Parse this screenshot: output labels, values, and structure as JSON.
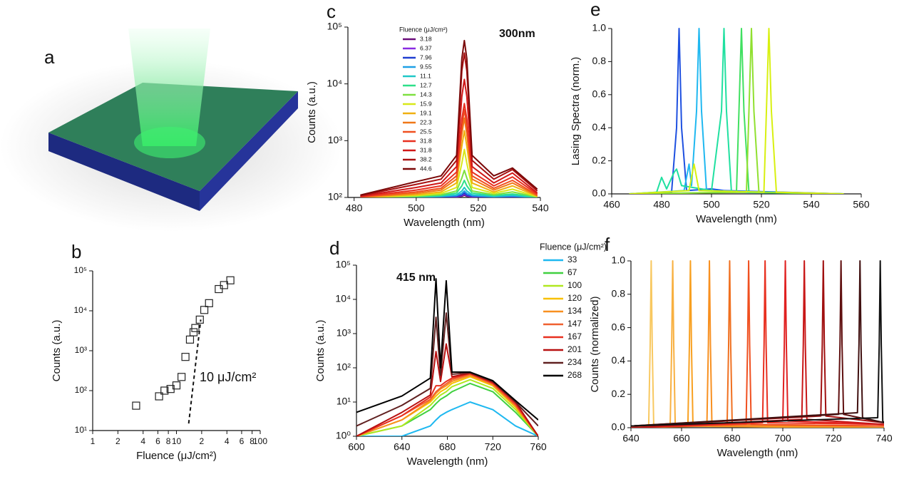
{
  "illustration": {
    "label": "a"
  },
  "chart_data": [
    {
      "type": "scatter",
      "panel_label": "b",
      "xlabel": "Fluence (μJ/cm²)",
      "ylabel": "Counts (a.u.)",
      "xlog": true,
      "ylog": true,
      "xlim": [
        1,
        100
      ],
      "ylim": [
        10,
        100000
      ],
      "xticks": [
        1,
        2,
        4,
        6,
        8,
        10,
        {
          "value": 20,
          "label": "2"
        },
        {
          "value": 40,
          "label": "4"
        },
        {
          "value": 60,
          "label": "6"
        },
        {
          "value": 80,
          "label": "8"
        },
        100
      ],
      "yticks": [
        {
          "value": 10,
          "label": "10¹"
        },
        {
          "value": 100,
          "label": "10²"
        },
        {
          "value": 1000,
          "label": "10³"
        },
        {
          "value": 10000,
          "label": "10⁴"
        },
        {
          "value": 100000,
          "label": "10⁵"
        }
      ],
      "annotation": "10 μJ/cm²",
      "series": [
        {
          "color": "#222222",
          "x": [
            3.3,
            6.2,
            7.2,
            8.5,
            10,
            11.5,
            12.8,
            14.5,
            16,
            16.8,
            19,
            21.5,
            24.5,
            32,
            37,
            44
          ],
          "values": [
            42,
            72,
            100,
            110,
            135,
            220,
            700,
            1900,
            2900,
            3700,
            6000,
            10500,
            15500,
            35000,
            44000,
            58000
          ]
        }
      ],
      "fit_line": {
        "x": [
          14,
          19.5
        ],
        "y": [
          15,
          6000
        ]
      }
    },
    {
      "type": "line",
      "panel_label": "c",
      "xlabel": "Wavelength (nm)",
      "ylabel": "Counts (a.u.)",
      "ylog": true,
      "xlim": [
        478,
        540
      ],
      "ylim": [
        100,
        100000
      ],
      "xticks": [
        480,
        500,
        520,
        540
      ],
      "yticks": [
        {
          "value": 100,
          "label": "10²"
        },
        {
          "value": 1000,
          "label": "10³"
        },
        {
          "value": 10000,
          "label": "10⁴"
        },
        {
          "value": 100000,
          "label": "10⁵"
        }
      ],
      "annotation": "300nm",
      "legend_title": "Fluence (μJ/cm²)",
      "x": [
        482,
        500,
        508,
        513,
        514.7,
        515.5,
        516.3,
        518,
        525,
        531,
        539
      ],
      "series": [
        {
          "name": "3.18",
          "color": "#6a0d7a",
          "values": [
            100,
            100,
            100,
            102,
            105,
            110,
            105,
            102,
            100,
            101,
            100
          ]
        },
        {
          "name": "6.37",
          "color": "#8a2be2",
          "values": [
            100,
            100,
            101,
            103,
            108,
            115,
            108,
            103,
            101,
            102,
            100
          ]
        },
        {
          "name": "7.96",
          "color": "#1f3fd0",
          "values": [
            100,
            100,
            102,
            105,
            110,
            120,
            110,
            105,
            102,
            104,
            100
          ]
        },
        {
          "name": "9.55",
          "color": "#1ea0e6",
          "values": [
            100,
            101,
            104,
            108,
            118,
            130,
            118,
            108,
            103,
            106,
            100
          ]
        },
        {
          "name": "11.1",
          "color": "#20c8c8",
          "values": [
            100,
            102,
            106,
            112,
            130,
            150,
            130,
            112,
            105,
            110,
            100
          ]
        },
        {
          "name": "12.7",
          "color": "#2ee08a",
          "values": [
            100,
            103,
            108,
            120,
            160,
            200,
            160,
            120,
            108,
            115,
            101
          ]
        },
        {
          "name": "14.3",
          "color": "#7ee040",
          "values": [
            100,
            105,
            112,
            130,
            220,
            300,
            220,
            130,
            112,
            125,
            102
          ]
        },
        {
          "name": "15.9",
          "color": "#d8e818",
          "values": [
            100,
            108,
            118,
            150,
            400,
            700,
            400,
            150,
            118,
            140,
            103
          ]
        },
        {
          "name": "19.1",
          "color": "#f0b010",
          "values": [
            100,
            112,
            125,
            180,
            800,
            1500,
            800,
            180,
            125,
            160,
            105
          ]
        },
        {
          "name": "22.3",
          "color": "#f07818",
          "values": [
            101,
            118,
            135,
            210,
            1300,
            2500,
            1300,
            210,
            135,
            180,
            107
          ]
        },
        {
          "name": "25.5",
          "color": "#f05020",
          "values": [
            102,
            125,
            145,
            240,
            1800,
            3500,
            1800,
            240,
            145,
            200,
            110
          ]
        },
        {
          "name": "31.8",
          "color": "#e83020",
          "values": [
            103,
            135,
            160,
            280,
            2400,
            4500,
            2400,
            280,
            160,
            230,
            115
          ]
        },
        {
          "name": "31.8",
          "color": "#d01818",
          "values": [
            105,
            150,
            180,
            350,
            6000,
            12000,
            6000,
            350,
            180,
            270,
            120
          ]
        },
        {
          "name": "38.2",
          "color": "#a81010",
          "values": [
            108,
            170,
            210,
            450,
            17000,
            35000,
            17000,
            450,
            210,
            310,
            130
          ]
        },
        {
          "name": "44.6",
          "color": "#7a0808",
          "values": [
            110,
            190,
            240,
            550,
            28000,
            58000,
            28000,
            550,
            240,
            330,
            140
          ]
        }
      ]
    },
    {
      "type": "line",
      "panel_label": "d",
      "xlabel": "Wavelength (nm)",
      "ylabel": "Counts (a.u.)",
      "ylog": true,
      "xlim": [
        600,
        760
      ],
      "ylim": [
        1,
        100000
      ],
      "xticks": [
        600,
        640,
        680,
        720,
        760
      ],
      "yticks": [
        {
          "value": 1,
          "label": "10⁰"
        },
        {
          "value": 10,
          "label": "10¹"
        },
        {
          "value": 100,
          "label": "10²"
        },
        {
          "value": 1000,
          "label": "10³"
        },
        {
          "value": 10000,
          "label": "10⁴"
        },
        {
          "value": 100000,
          "label": "10⁵"
        }
      ],
      "annotation": "415 nm",
      "legend_title": "Fluence (μJ/cm²)",
      "x": [
        600,
        640,
        665,
        670,
        674,
        679,
        684,
        700,
        720,
        740,
        760
      ],
      "series": [
        {
          "name": "33",
          "color": "#1eb8f0",
          "values": [
            1,
            1,
            2,
            3,
            4,
            5,
            6,
            10,
            6,
            2,
            1
          ]
        },
        {
          "name": "67",
          "color": "#40d040",
          "values": [
            1,
            2,
            6,
            9,
            12,
            15,
            20,
            35,
            20,
            5,
            1
          ]
        },
        {
          "name": "100",
          "color": "#b0e820",
          "values": [
            1,
            2,
            8,
            12,
            16,
            20,
            28,
            45,
            25,
            6,
            1
          ]
        },
        {
          "name": "120",
          "color": "#f8c000",
          "values": [
            1,
            3,
            10,
            15,
            20,
            25,
            35,
            55,
            30,
            7,
            1
          ]
        },
        {
          "name": "134",
          "color": "#f89020",
          "values": [
            1,
            3,
            11,
            18,
            24,
            30,
            40,
            60,
            32,
            8,
            1
          ]
        },
        {
          "name": "147",
          "color": "#f06030",
          "values": [
            1,
            4,
            12,
            20,
            26,
            34,
            45,
            65,
            34,
            8,
            1
          ]
        },
        {
          "name": "167",
          "color": "#e83020",
          "values": [
            1,
            4,
            14,
            30,
            30,
            40,
            50,
            68,
            36,
            9,
            1
          ]
        },
        {
          "name": "201",
          "color": "#b81010",
          "values": [
            1,
            5,
            16,
            300,
            40,
            500,
            55,
            70,
            38,
            10,
            1
          ]
        },
        {
          "name": "234",
          "color": "#602020",
          "values": [
            2,
            8,
            25,
            3000,
            60,
            4000,
            65,
            72,
            40,
            10,
            2
          ]
        },
        {
          "name": "268",
          "color": "#000000",
          "values": [
            5,
            15,
            50,
            40000,
            100,
            35000,
            75,
            75,
            42,
            11,
            3
          ]
        }
      ]
    },
    {
      "type": "line",
      "panel_label": "e",
      "xlabel": "Wavelength (nm)",
      "ylabel": "Lasing Spectra (norm.)",
      "xlim": [
        460,
        560
      ],
      "ylim": [
        0,
        1
      ],
      "xticks": [
        460,
        480,
        500,
        520,
        540,
        560
      ],
      "yticks": [
        {
          "value": 0,
          "label": "0.0"
        },
        0.2,
        0.4,
        0.6,
        0.8,
        {
          "value": 1,
          "label": "1.0"
        }
      ],
      "series": [
        {
          "color": "#1e50e0",
          "x": [
            467,
            484,
            486,
            487,
            488,
            490,
            500,
            505,
            553
          ],
          "values": [
            0,
            0.01,
            0.4,
            1,
            0.4,
            0.02,
            0.03,
            0.02,
            0
          ]
        },
        {
          "color": "#20b8f0",
          "x": [
            467,
            489,
            491,
            492,
            494,
            495,
            496,
            498,
            553
          ],
          "values": [
            0,
            0.02,
            0.18,
            0.05,
            0.5,
            1,
            0.5,
            0.02,
            0
          ]
        },
        {
          "color": "#20e0a0",
          "x": [
            467,
            478,
            480,
            482,
            485,
            486,
            488,
            500,
            504,
            505,
            506,
            508,
            553
          ],
          "values": [
            0,
            0.01,
            0.1,
            0.03,
            0.13,
            0.15,
            0.05,
            0.02,
            0.5,
            1,
            0.5,
            0.01,
            0
          ]
        },
        {
          "color": "#40e060",
          "x": [
            467,
            510,
            511,
            512,
            513,
            515,
            553
          ],
          "values": [
            0,
            0.01,
            0.5,
            1,
            0.5,
            0.01,
            0
          ]
        },
        {
          "color": "#90e030",
          "x": [
            467,
            514,
            515,
            516,
            517,
            519,
            553
          ],
          "values": [
            0,
            0.01,
            0.5,
            1,
            0.5,
            0.01,
            0
          ]
        },
        {
          "color": "#d8f010",
          "x": [
            467,
            491,
            493,
            495,
            521,
            522,
            523,
            524,
            526,
            553
          ],
          "values": [
            0,
            0.02,
            0.18,
            0.02,
            0.01,
            0.5,
            1,
            0.5,
            0.01,
            0
          ]
        }
      ]
    },
    {
      "type": "line",
      "panel_label": "f",
      "xlabel": "Wavelength (nm)",
      "ylabel": "Counts (normalized)",
      "xlim": [
        640,
        740
      ],
      "ylim": [
        0,
        1
      ],
      "xticks": [
        640,
        660,
        680,
        700,
        720,
        740
      ],
      "yticks": [
        {
          "value": 0,
          "label": "0.0"
        },
        0.2,
        0.4,
        0.6,
        0.8,
        {
          "value": 1,
          "label": "1.0"
        }
      ],
      "series": [
        {
          "color": "#f8c860",
          "x": [
            640,
            647,
            647.6,
            648,
            648.4,
            649,
            740
          ],
          "values": [
            0,
            0.01,
            0.5,
            1,
            0.5,
            0.01,
            0
          ]
        },
        {
          "color": "#f8b040",
          "x": [
            640,
            655.5,
            656.1,
            656.5,
            656.9,
            657.5,
            740
          ],
          "values": [
            0,
            0.01,
            0.5,
            1,
            0.5,
            0.01,
            0
          ]
        },
        {
          "color": "#f8a020",
          "x": [
            640,
            662.5,
            663.1,
            663.5,
            663.9,
            664.5,
            740
          ],
          "values": [
            0,
            0.01,
            0.5,
            1,
            0.5,
            0.01,
            0
          ]
        },
        {
          "color": "#f89020",
          "x": [
            640,
            670,
            670.6,
            671,
            671.4,
            672,
            740
          ],
          "values": [
            0,
            0.01,
            0.5,
            1,
            0.5,
            0.01,
            0.01
          ]
        },
        {
          "color": "#f07020",
          "x": [
            640,
            678,
            678.6,
            679,
            679.4,
            680,
            740
          ],
          "values": [
            0,
            0.02,
            0.5,
            1,
            0.5,
            0.02,
            0.01
          ]
        },
        {
          "color": "#f05020",
          "x": [
            640,
            685.5,
            686.1,
            686.5,
            686.9,
            687.5,
            740
          ],
          "values": [
            0,
            0.02,
            0.5,
            1,
            0.5,
            0.02,
            0.01
          ]
        },
        {
          "color": "#e83020",
          "x": [
            640,
            692,
            692.6,
            693,
            693.4,
            694,
            740
          ],
          "values": [
            0,
            0.03,
            0.5,
            1,
            0.5,
            0.03,
            0.02
          ]
        },
        {
          "color": "#e02020",
          "x": [
            640,
            700,
            700.6,
            701,
            701.4,
            702,
            740
          ],
          "values": [
            0,
            0.04,
            0.5,
            1,
            0.5,
            0.04,
            0.02
          ]
        },
        {
          "color": "#c81818",
          "x": [
            640,
            707.5,
            708.1,
            708.5,
            708.9,
            709.5,
            740
          ],
          "values": [
            0,
            0.05,
            0.5,
            1,
            0.5,
            0.05,
            0.02
          ]
        },
        {
          "color": "#a01010",
          "x": [
            640,
            715,
            715.6,
            716,
            716.4,
            717,
            740
          ],
          "values": [
            0.01,
            0.07,
            0.5,
            1,
            0.5,
            0.07,
            0.03
          ]
        },
        {
          "color": "#601010",
          "x": [
            640,
            722,
            722.6,
            723,
            723.4,
            724,
            740
          ],
          "values": [
            0.01,
            0.08,
            0.5,
            1,
            0.5,
            0.08,
            0.03
          ]
        },
        {
          "color": "#401010",
          "x": [
            640,
            729.5,
            730.1,
            730.5,
            730.9,
            731.5,
            740
          ],
          "values": [
            0.01,
            0.09,
            0.5,
            1,
            0.5,
            0.06,
            0.03
          ]
        },
        {
          "color": "#101010",
          "x": [
            640,
            737.5,
            738.1,
            738.5,
            738.9,
            739.5,
            740
          ],
          "values": [
            0.01,
            0.06,
            0.5,
            1,
            0.5,
            0.04,
            0.03
          ]
        }
      ]
    }
  ]
}
